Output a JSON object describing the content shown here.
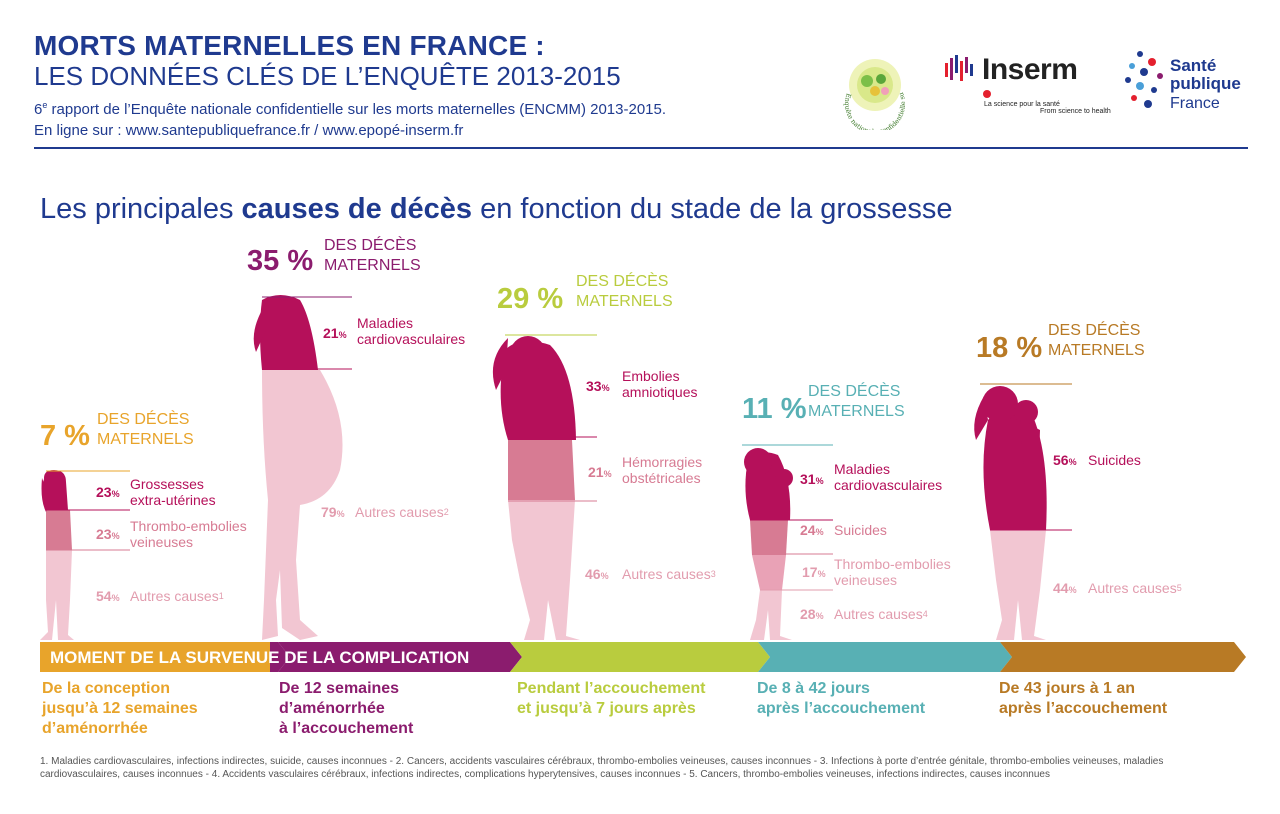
{
  "header": {
    "title_line1": "MORTS MATERNELLES EN FRANCE :",
    "title_line2": "LES DONNÉES CLÉS DE L’ENQUÊTE 2013-2015",
    "subtitle_line1_pre": "6",
    "subtitle_line1_sup": "e",
    "subtitle_line1_post": " rapport de l’Enquête nationale confidentielle sur les morts maternelles (ENCMM) 2013-2015.",
    "subtitle_line2": "En ligne sur : www.santepubliquefrance.fr / www.epopé-inserm.fr"
  },
  "logos": {
    "enquete_text": "Enquête nationale confidentielle sur les morts maternelles",
    "inserm_name": "Inserm",
    "inserm_tagline1": "La science pour la santé",
    "inserm_tagline2": "From science to health",
    "sante_line1": "Santé",
    "sante_line2": "publique",
    "sante_line3": "France"
  },
  "section_title": {
    "pre": "Les principales ",
    "bold": "causes de décès",
    "post": " en fonction du stade de la grossesse"
  },
  "deces_label_line1": "DES DÉCÈS",
  "deces_label_line2": "MATERNELS",
  "timeline_label": "MOMENT DE LA SURVENUE DE LA COMPLICATION",
  "colors": {
    "navy": "#1f3a8f",
    "orange": "#e8a42b",
    "purple": "#8b1c6e",
    "green": "#b9cc3e",
    "teal": "#58b0b4",
    "brown": "#b87a25",
    "crimson": "#b5105a",
    "rose": "#d77b93",
    "lightpink": "#f2c6d2",
    "causegrey": "#e29cae"
  },
  "stages": [
    {
      "pct": "7 %",
      "label_line1": "De la conception",
      "label_line2": "jusqu’à 12 semaines",
      "label_line3": "d’aménorrhée",
      "causes": [
        {
          "pct": "23",
          "name1": "Grossesses",
          "name2": "extra-utérines",
          "sup": ""
        },
        {
          "pct": "23",
          "name1": "Thrombo-embolies",
          "name2": "veineuses",
          "sup": ""
        },
        {
          "pct": "54",
          "name1": "Autres causes",
          "name2": "",
          "sup": "1"
        }
      ]
    },
    {
      "pct": "35 %",
      "label_line1": "De 12 semaines",
      "label_line2": "d’aménorrhée",
      "label_line3": "à l’accouchement",
      "causes": [
        {
          "pct": "21",
          "name1": "Maladies",
          "name2": "cardiovasculaires",
          "sup": ""
        },
        {
          "pct": "79",
          "name1": "Autres causes",
          "name2": "",
          "sup": "2"
        }
      ]
    },
    {
      "pct": "29 %",
      "label_line1": "Pendant l’accouchement",
      "label_line2": "et jusqu’à 7 jours après",
      "label_line3": "",
      "causes": [
        {
          "pct": "33",
          "name1": "Embolies",
          "name2": "amniotiques",
          "sup": ""
        },
        {
          "pct": "21",
          "name1": "Hémorragies",
          "name2": "obstétricales",
          "sup": ""
        },
        {
          "pct": "46",
          "name1": "Autres causes",
          "name2": "",
          "sup": "3"
        }
      ]
    },
    {
      "pct": "11 %",
      "label_line1": "De 8 à 42 jours",
      "label_line2": "après l’accouchement",
      "label_line3": "",
      "causes": [
        {
          "pct": "31",
          "name1": "Maladies",
          "name2": "cardiovasculaires",
          "sup": ""
        },
        {
          "pct": "24",
          "name1": "Suicides",
          "name2": "",
          "sup": ""
        },
        {
          "pct": "17",
          "name1": "Thrombo-embolies",
          "name2": "veineuses",
          "sup": ""
        },
        {
          "pct": "28",
          "name1": "Autres causes",
          "name2": "",
          "sup": "4"
        }
      ]
    },
    {
      "pct": "18 %",
      "label_line1": "De 43 jours à 1 an",
      "label_line2": "après l’accouchement",
      "label_line3": "",
      "causes": [
        {
          "pct": "56",
          "name1": "Suicides",
          "name2": "",
          "sup": ""
        },
        {
          "pct": "44",
          "name1": "Autres causes",
          "name2": "",
          "sup": "5"
        }
      ]
    }
  ],
  "percent_sign": "%",
  "footnote": "1. Maladies cardiovasculaires, infections indirectes, suicide, causes inconnues - 2. Cancers, accidents vasculaires cérébraux, thrombo-embolies veineuses, causes inconnues - 3. Infections à porte d’entrée génitale, thrombo-embolies veineuses, maladies cardiovasculaires, causes inconnues - 4. Accidents vasculaires cérébraux, infections indirectes, complications hyperytensives, causes inconnues - 5. Cancers, thrombo-embolies veineuses, infections indirectes, causes inconnues"
}
